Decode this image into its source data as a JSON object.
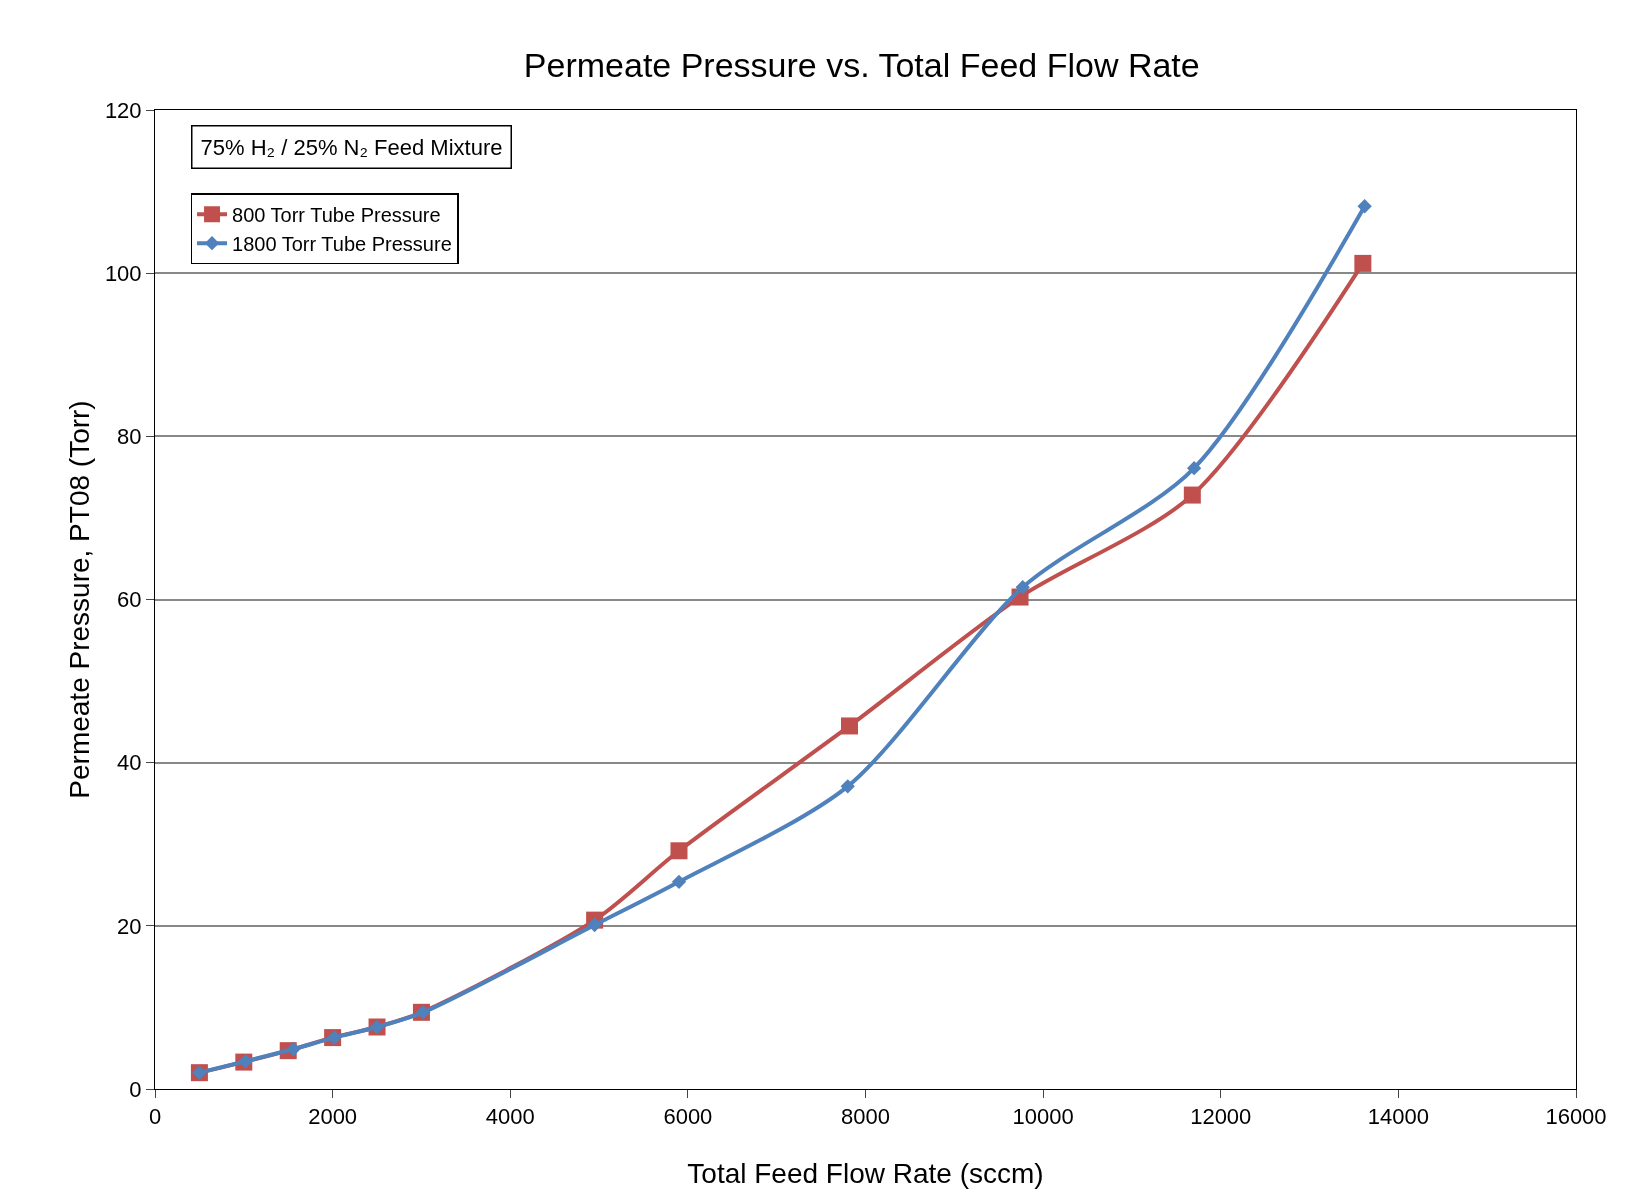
{
  "chart_data": {
    "type": "line",
    "title": "Permeate Pressure vs. Total Feed Flow Rate",
    "xlabel": "Total Feed Flow Rate (sccm)",
    "ylabel": "Permeate Pressure, PT08 (Torr)",
    "annotations": [
      "75% H₂ / 25% N₂ Feed Mixture"
    ],
    "xlim": [
      0,
      16000
    ],
    "xticks": [
      0,
      2000,
      4000,
      6000,
      8000,
      10000,
      12000,
      14000,
      16000
    ],
    "ylim": [
      0,
      120
    ],
    "yticks": [
      0,
      20,
      40,
      60,
      80,
      100,
      120
    ],
    "grid": "y",
    "legend": "top left",
    "line_style": "solid",
    "series": [
      {
        "name": "800 Torr Tube Pressure",
        "color": "#c0504d",
        "marker": "square",
        "x": [
          500,
          1000,
          1500,
          2000,
          2500,
          3000,
          4950,
          5900,
          7820,
          9740,
          11680,
          13600
        ],
        "values": [
          2.0,
          3.3,
          4.7,
          6.3,
          7.6,
          9.4,
          20.7,
          29.2,
          44.5,
          60.3,
          72.8,
          101.2
        ]
      },
      {
        "name": "1800 Torr Tube Pressure",
        "color": "#4f81bd",
        "marker": "diamond",
        "x": [
          500,
          1020,
          1560,
          2020,
          2500,
          3020,
          4950,
          5900,
          7800,
          9770,
          11700,
          13620
        ],
        "values": [
          2.0,
          3.4,
          4.9,
          6.3,
          7.6,
          9.4,
          20.1,
          25.4,
          37.1,
          61.5,
          76.1,
          108.2
        ]
      }
    ]
  }
}
